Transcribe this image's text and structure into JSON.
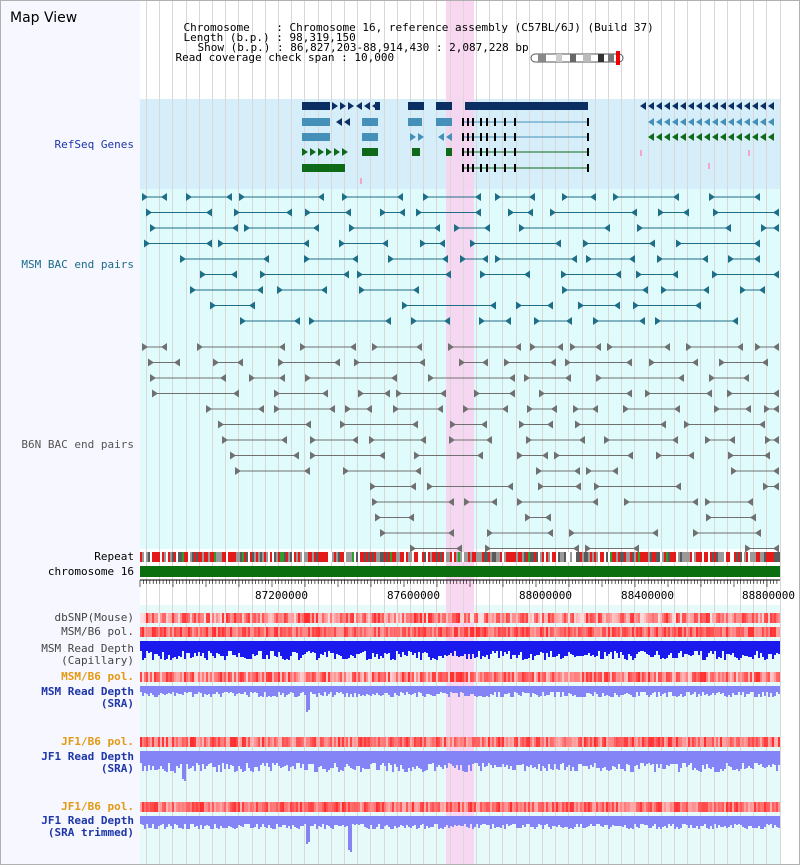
{
  "view_title": "Map View",
  "info": {
    "chromosome_key": "Chromosome",
    "chromosome_value": "Chromosome 16, reference assembly (C57BL/6J) (Build 37)",
    "length_key": "Length (b.p.)",
    "length_value": "98,319,150",
    "show_key": "Show (b.p.)",
    "show_value": "86,827,203-88,914,430 : 2,087,228 bp",
    "coverage_key": "Read coverage check span",
    "coverage_value": "10,000"
  },
  "tracks": {
    "refseq": "RefSeq Genes",
    "msm_bac": "MSM BAC end pairs",
    "b6n_bac": "B6N BAC end pairs",
    "repeat": "Repeat",
    "chromosome": "chromosome 16",
    "dbsnp": "dbSNP(Mouse)",
    "msm_b6_pol": "MSM/B6 pol.",
    "msm_depth_cap_1": "MSM Read Depth",
    "msm_depth_cap_2": "(Capillary)",
    "msm_b6_pol_2": "MSM/B6 pol.",
    "msm_depth_sra_1": "MSM Read Depth",
    "msm_depth_sra_2": "(SRA)",
    "jf1_b6_pol": "JF1/B6 pol.",
    "jf1_depth_sra_1": "JF1 Read Depth",
    "jf1_depth_sra_2": "(SRA)",
    "jf1_b6_pol_2": "JF1/B6 pol.",
    "jf1_depth_trim_1": "JF1 Read Depth",
    "jf1_depth_trim_2": "(SRA trimmed)"
  },
  "axis": {
    "ticks": [
      "87200000",
      "87600000",
      "88000000",
      "88400000",
      "88800000"
    ]
  },
  "colors": {
    "refseq_bg": "#d6eefa",
    "bac_bg": "#e0fbfb",
    "highlight": "#f8d3f0",
    "gene_dark": "#0b2f62",
    "gene_mid": "#4590b8",
    "gene_green": "#0e6a18",
    "msm_bac": "#1f6e88",
    "b6n_bac": "#707070",
    "chromosome": "#0b6f10",
    "depth_dark": "#1a1aee",
    "depth_light": "#8484f6",
    "label_blue": "#1d36a8",
    "label_orange": "#e39912",
    "label_teal": "#1a6a88"
  }
}
